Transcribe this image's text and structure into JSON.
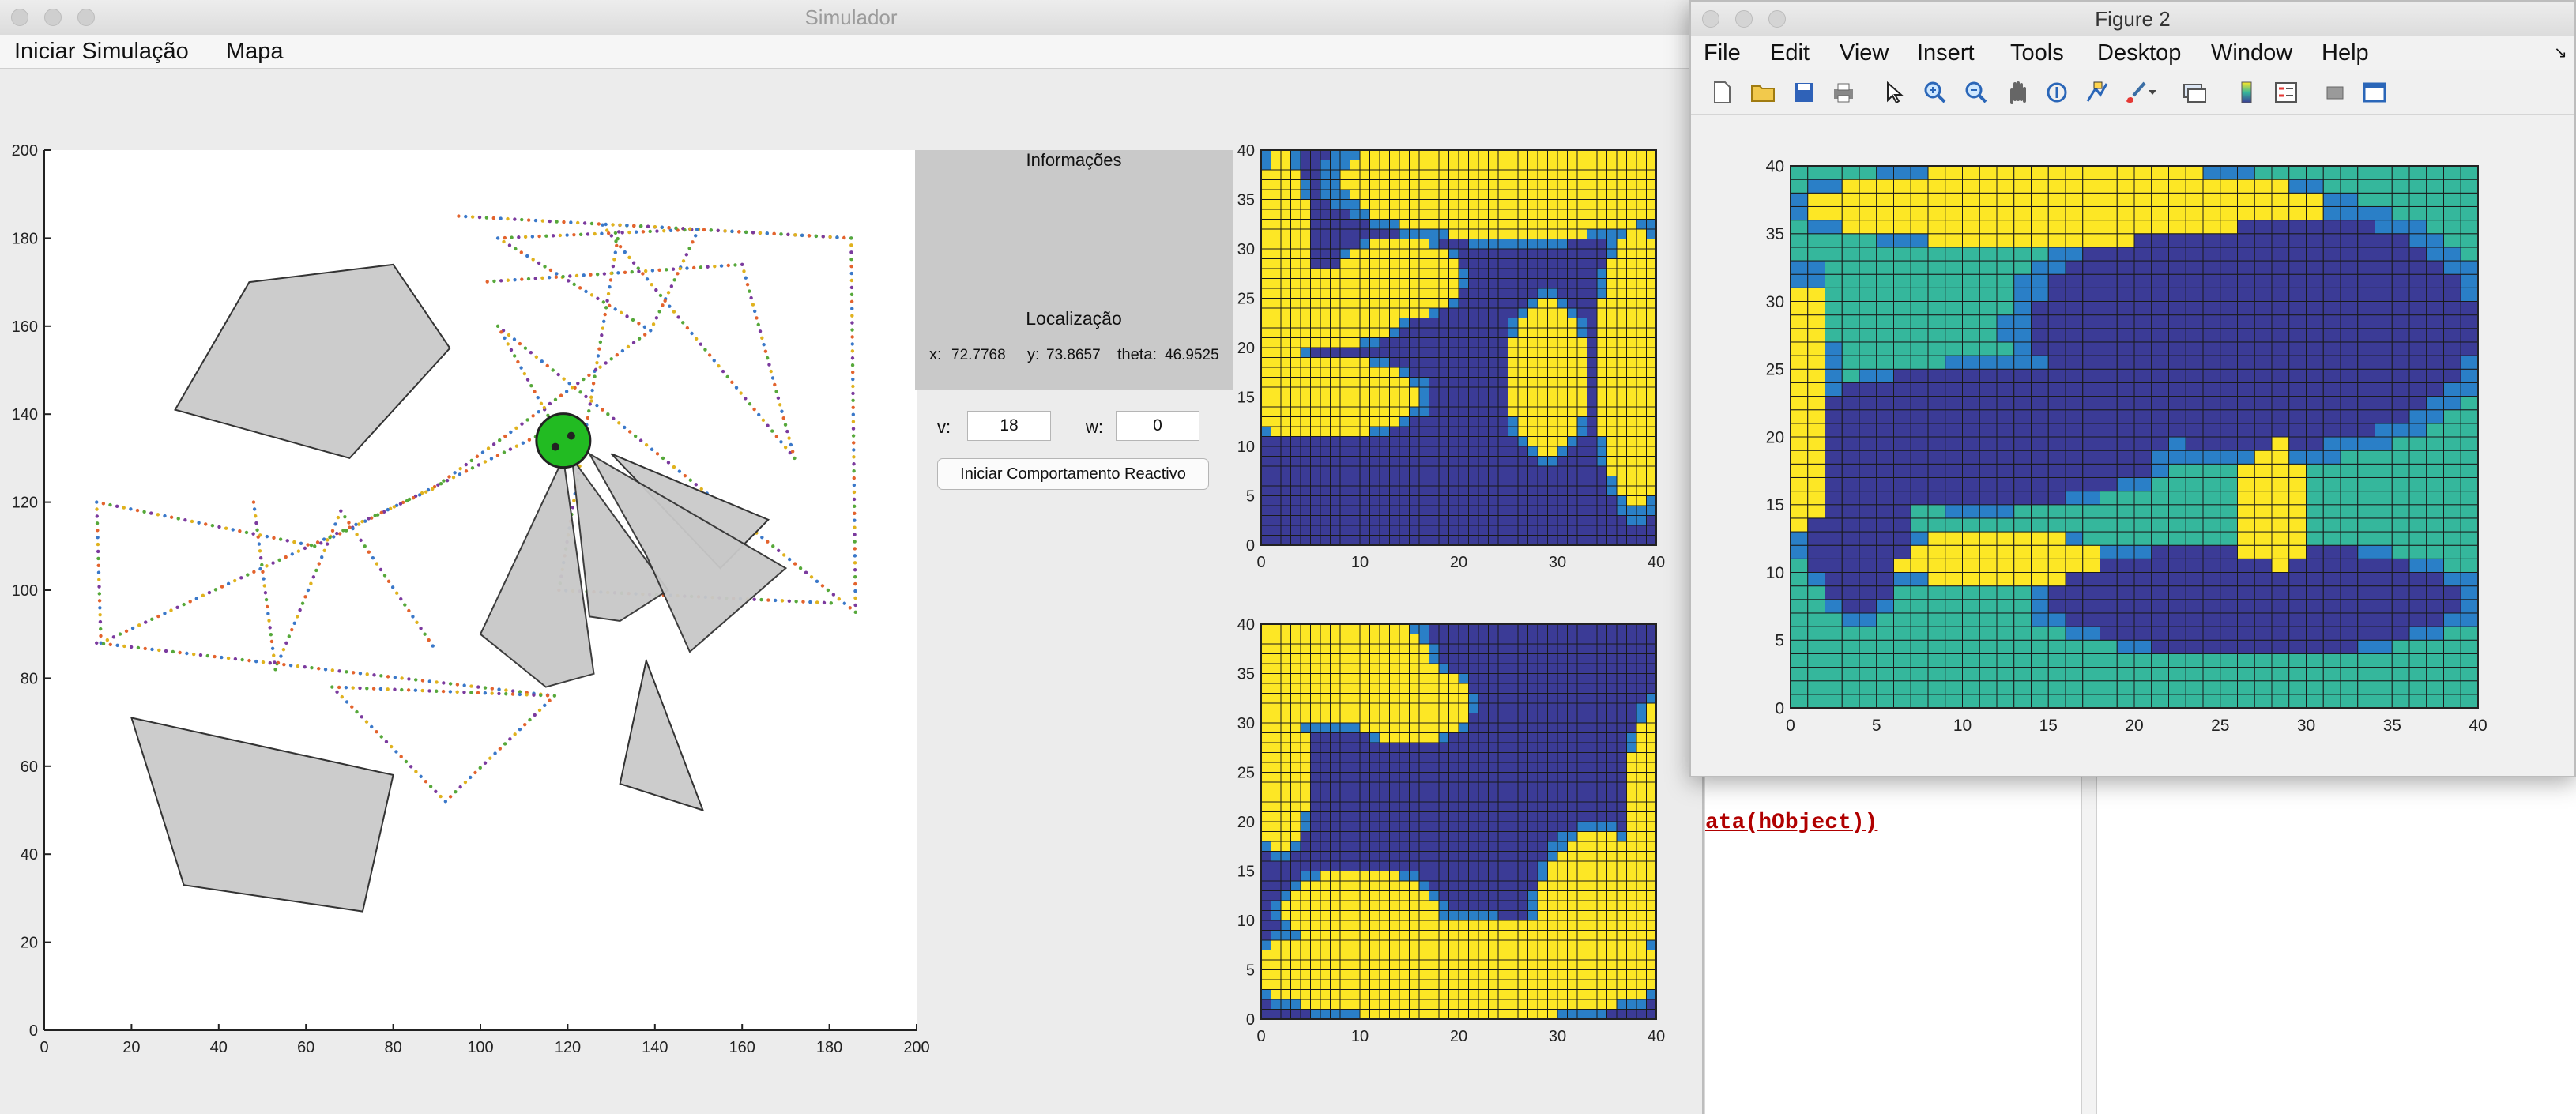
{
  "main_window": {
    "title": "Simulador",
    "menu": [
      "Iniciar Simulação",
      "Mapa"
    ]
  },
  "info_panel": {
    "title": "Informações",
    "location_title": "Localização",
    "x_label": "x:",
    "x_value": "72.7768",
    "y_label": "y:",
    "y_value": "73.8657",
    "theta_label": "theta:",
    "theta_value": "46.9525"
  },
  "controls": {
    "v_label": "v:",
    "v_value": "18",
    "w_label": "w:",
    "w_value": "0",
    "reactive_button": "Iniciar Comportamento Reactivo"
  },
  "figure_window": {
    "title": "Figure 2",
    "menu": [
      "File",
      "Edit",
      "View",
      "Insert",
      "Tools",
      "Desktop",
      "Window",
      "Help"
    ],
    "toolbar_icons": [
      "new-file-icon",
      "open-folder-icon",
      "save-icon",
      "print-icon",
      "pointer-icon",
      "zoom-in-icon",
      "zoom-out-icon",
      "pan-hand-icon",
      "rotate-3d-icon",
      "data-cursor-icon",
      "brush-icon",
      "link-plot-icon",
      "colorbar-icon",
      "legend-icon",
      "hide-tools-icon",
      "dock-icon"
    ]
  },
  "console": {
    "code_text": "ata(hObject))"
  },
  "colors": {
    "obstacle_fill": "#cccccc",
    "sensor_fill": "#c8c8c8",
    "robot": "#22bb22",
    "map_dark": "#3b3b96",
    "map_yellow": "#fde725",
    "map_teal": "#35b79c",
    "map_blue": "#2a7fc7"
  },
  "chart_data": [
    {
      "type": "scatter",
      "title": "",
      "xlabel": "",
      "ylabel": "",
      "xlim": [
        0,
        200
      ],
      "ylim": [
        0,
        200
      ],
      "xticks": [
        "0",
        "20",
        "40",
        "60",
        "80",
        "100",
        "120",
        "140",
        "160",
        "180",
        "200"
      ],
      "yticks": [
        "0",
        "20",
        "40",
        "60",
        "80",
        "100",
        "120",
        "140",
        "160",
        "180",
        "200"
      ],
      "obstacles": [
        [
          [
            47,
            170
          ],
          [
            80,
            174
          ],
          [
            93,
            155
          ],
          [
            70,
            130
          ],
          [
            30,
            141
          ]
        ],
        [
          [
            20,
            71
          ],
          [
            80,
            58
          ],
          [
            73,
            27
          ],
          [
            32,
            33
          ]
        ],
        [
          [
            130,
            131
          ],
          [
            155,
            105
          ],
          [
            166,
            116
          ]
        ],
        [
          [
            138,
            84
          ],
          [
            151,
            50
          ],
          [
            132,
            56
          ]
        ]
      ],
      "robot": {
        "x": 119,
        "y": 134
      },
      "sensor_cones": [
        [
          [
            119,
            130
          ],
          [
            100,
            90
          ],
          [
            115,
            78
          ],
          [
            126,
            81
          ]
        ],
        [
          [
            121,
            130
          ],
          [
            125,
            94
          ],
          [
            132,
            93
          ],
          [
            143,
            100
          ]
        ],
        [
          [
            125,
            131
          ],
          [
            138,
            108
          ],
          [
            148,
            86
          ],
          [
            170,
            105
          ]
        ]
      ],
      "trajectory": [
        [
          [
            95,
            185
          ],
          [
            185,
            180
          ],
          [
            186,
            95
          ],
          [
            104,
            160
          ],
          [
            117,
            137
          ]
        ],
        [
          [
            117,
            137
          ],
          [
            62,
            110
          ],
          [
            12,
            120
          ],
          [
            13,
            88
          ],
          [
            89,
            123
          ]
        ],
        [
          [
            89,
            123
          ],
          [
            139,
            159
          ],
          [
            150,
            182
          ],
          [
            104,
            180
          ],
          [
            139,
            159
          ]
        ],
        [
          [
            12,
            88
          ],
          [
            117,
            76
          ],
          [
            92,
            52
          ],
          [
            66,
            78
          ],
          [
            117,
            76
          ]
        ],
        [
          [
            185,
            180
          ],
          [
            132,
            183
          ],
          [
            118,
            100
          ],
          [
            182,
            97
          ]
        ],
        [
          [
            48,
            120
          ],
          [
            53,
            82
          ],
          [
            68,
            118
          ],
          [
            90,
            86
          ]
        ],
        [
          [
            128,
            183
          ],
          [
            172,
            130
          ],
          [
            160,
            174
          ],
          [
            100,
            170
          ]
        ]
      ]
    },
    {
      "type": "heatmap",
      "xlim": [
        0,
        40
      ],
      "ylim": [
        0,
        40
      ],
      "xticks": [
        "0",
        "10",
        "20",
        "30",
        "40"
      ],
      "yticks": [
        "0",
        "5",
        "10",
        "15",
        "20",
        "25",
        "30",
        "35",
        "40"
      ],
      "blobs": [
        {
          "cx": 26,
          "cy": 37,
          "rx": 18,
          "ry": 6,
          "v": 3
        },
        {
          "cx": 6,
          "cy": 24,
          "rx": 9,
          "ry": 4,
          "v": 3
        },
        {
          "cx": 14,
          "cy": 27,
          "rx": 6,
          "ry": 4,
          "v": 3
        },
        {
          "cx": 6,
          "cy": 15,
          "rx": 10,
          "ry": 4,
          "v": 3
        },
        {
          "cx": 29,
          "cy": 17,
          "rx": 4,
          "ry": 8,
          "v": 3
        },
        {
          "cx": 38,
          "cy": 18,
          "rx": 4,
          "ry": 14,
          "v": 3
        },
        {
          "cx": 2,
          "cy": 28,
          "rx": 3,
          "ry": 12,
          "v": 3
        }
      ]
    },
    {
      "type": "heatmap",
      "xlim": [
        0,
        40
      ],
      "ylim": [
        0,
        40
      ],
      "xticks": [
        "0",
        "10",
        "20",
        "30",
        "40"
      ],
      "yticks": [
        "0",
        "5",
        "10",
        "15",
        "20",
        "25",
        "30",
        "35",
        "40"
      ],
      "blobs": [
        {
          "cx": 7,
          "cy": 36,
          "rx": 10,
          "ry": 6,
          "v": 3
        },
        {
          "cx": 15,
          "cy": 32,
          "rx": 6,
          "ry": 4,
          "v": 3
        },
        {
          "cx": 2,
          "cy": 25,
          "rx": 3,
          "ry": 8,
          "v": 3
        },
        {
          "cx": 20,
          "cy": 5,
          "rx": 22,
          "ry": 5,
          "v": 3
        },
        {
          "cx": 10,
          "cy": 11,
          "rx": 8,
          "ry": 4,
          "v": 3
        },
        {
          "cx": 34,
          "cy": 11,
          "rx": 6,
          "ry": 8,
          "v": 3
        },
        {
          "cx": 40,
          "cy": 20,
          "rx": 3,
          "ry": 12,
          "v": 3
        }
      ]
    },
    {
      "type": "heatmap",
      "xlim": [
        0,
        40
      ],
      "ylim": [
        0,
        40
      ],
      "xticks": [
        "0",
        "5",
        "10",
        "15",
        "20",
        "25",
        "30",
        "35",
        "40"
      ],
      "yticks": [
        "0",
        "5",
        "10",
        "15",
        "20",
        "25",
        "30",
        "35",
        "40"
      ],
      "blobs": [
        {
          "cx": 27,
          "cy": 28,
          "rx": 13,
          "ry": 9,
          "v": 0
        },
        {
          "cx": 11,
          "cy": 20,
          "rx": 11,
          "ry": 5,
          "v": 0
        },
        {
          "cx": 27,
          "cy": 8,
          "rx": 12,
          "ry": 4,
          "v": 0
        },
        {
          "cx": 4,
          "cy": 14,
          "rx": 3,
          "ry": 7,
          "v": 0
        },
        {
          "cx": 16,
          "cy": 37,
          "rx": 15,
          "ry": 3,
          "v": 3
        },
        {
          "cx": 28,
          "cy": 14,
          "rx": 2,
          "ry": 6,
          "v": 3
        },
        {
          "cx": 12,
          "cy": 11,
          "rx": 6,
          "ry": 2,
          "v": 3
        },
        {
          "cx": 1,
          "cy": 22,
          "rx": 1.5,
          "ry": 10,
          "v": 3
        }
      ]
    }
  ]
}
